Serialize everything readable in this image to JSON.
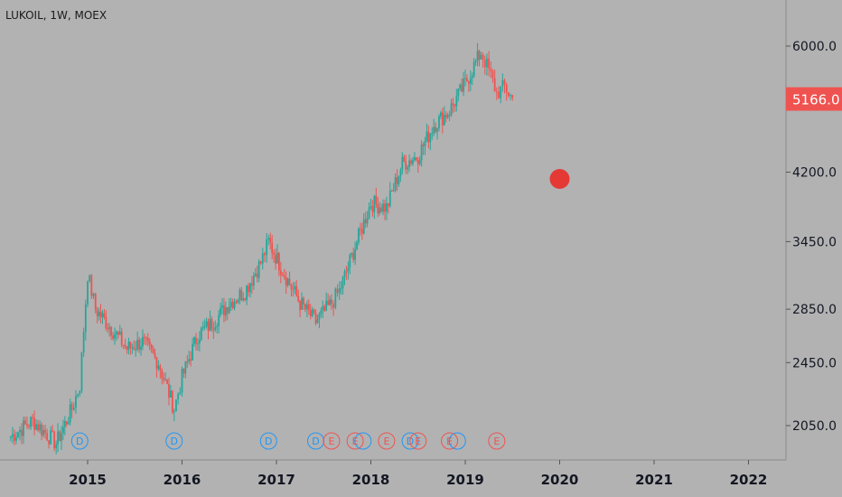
{
  "header": {
    "symbol_line": "LUKOIL, 1W, MOEX"
  },
  "colors": {
    "background": "#b2b2b2",
    "up": "#26a69a",
    "down": "#ef5350",
    "dividend": "#2196f3",
    "earnings": "#ef5350",
    "last_price_bg": "#ef5350",
    "axis_text": "#131722"
  },
  "chart_data": {
    "type": "candlestick",
    "title": "LUKOIL, 1W, MOEX",
    "x_ticks": [
      "2015",
      "2016",
      "2017",
      "2018",
      "2019",
      "2020",
      "2021",
      "2022"
    ],
    "y_ticks": [
      "6000.0",
      "4200.0",
      "3450.0",
      "2850.0",
      "2450.0",
      "2050.0"
    ],
    "y_scale": "log",
    "last_price": "5166.0",
    "series": [
      {
        "date": "2014-03",
        "close": 1980
      },
      {
        "date": "2014-06",
        "close": 2080
      },
      {
        "date": "2014-09",
        "close": 1950
      },
      {
        "date": "2014-11",
        "close": 2150
      },
      {
        "date": "2014-12",
        "close": 2300
      },
      {
        "date": "2015-01",
        "close": 3150
      },
      {
        "date": "2015-02",
        "close": 2850
      },
      {
        "date": "2015-04",
        "close": 2700
      },
      {
        "date": "2015-06",
        "close": 2550
      },
      {
        "date": "2015-08",
        "close": 2600
      },
      {
        "date": "2015-10",
        "close": 2450
      },
      {
        "date": "2015-12",
        "close": 2150
      },
      {
        "date": "2016-01",
        "close": 2350
      },
      {
        "date": "2016-03",
        "close": 2650
      },
      {
        "date": "2016-05",
        "close": 2750
      },
      {
        "date": "2016-07",
        "close": 2900
      },
      {
        "date": "2016-09",
        "close": 3000
      },
      {
        "date": "2016-11",
        "close": 3250
      },
      {
        "date": "2016-12",
        "close": 3450
      },
      {
        "date": "2017-02",
        "close": 3150
      },
      {
        "date": "2017-04",
        "close": 2900
      },
      {
        "date": "2017-06",
        "close": 2750
      },
      {
        "date": "2017-08",
        "close": 2900
      },
      {
        "date": "2017-09",
        "close": 3000
      },
      {
        "date": "2017-11",
        "close": 3400
      },
      {
        "date": "2018-01",
        "close": 3850
      },
      {
        "date": "2018-03",
        "close": 3800
      },
      {
        "date": "2018-05",
        "close": 4300
      },
      {
        "date": "2018-07",
        "close": 4400
      },
      {
        "date": "2018-09",
        "close": 4800
      },
      {
        "date": "2018-11",
        "close": 5000
      },
      {
        "date": "2019-01",
        "close": 5400
      },
      {
        "date": "2019-03",
        "close": 5900
      },
      {
        "date": "2019-04",
        "close": 5600
      },
      {
        "date": "2019-05",
        "close": 5250
      },
      {
        "date": "2019-06",
        "close": 5350
      },
      {
        "date": "2019-07",
        "close": 5166
      }
    ],
    "events": [
      {
        "type": "dividend",
        "label": "D",
        "date": "2014-12"
      },
      {
        "type": "dividend",
        "label": "D",
        "date": "2015-12"
      },
      {
        "type": "dividend",
        "label": "D",
        "date": "2016-12"
      },
      {
        "type": "dividend",
        "label": "D",
        "date": "2017-06"
      },
      {
        "type": "earnings",
        "label": "E",
        "date": "2017-08"
      },
      {
        "type": "earnings",
        "label": "E",
        "date": "2017-11"
      },
      {
        "type": "dividend",
        "label": "",
        "date": "2017-12"
      },
      {
        "type": "earnings",
        "label": "E",
        "date": "2018-03"
      },
      {
        "type": "dividend",
        "label": "D",
        "date": "2018-06"
      },
      {
        "type": "earnings",
        "label": "E",
        "date": "2018-07"
      },
      {
        "type": "earnings",
        "label": "E",
        "date": "2018-11"
      },
      {
        "type": "dividend",
        "label": "",
        "date": "2018-12"
      },
      {
        "type": "earnings",
        "label": "E",
        "date": "2019-05"
      }
    ],
    "marker": {
      "date": "2020-01",
      "value": 4120,
      "color": "#e53935"
    }
  }
}
